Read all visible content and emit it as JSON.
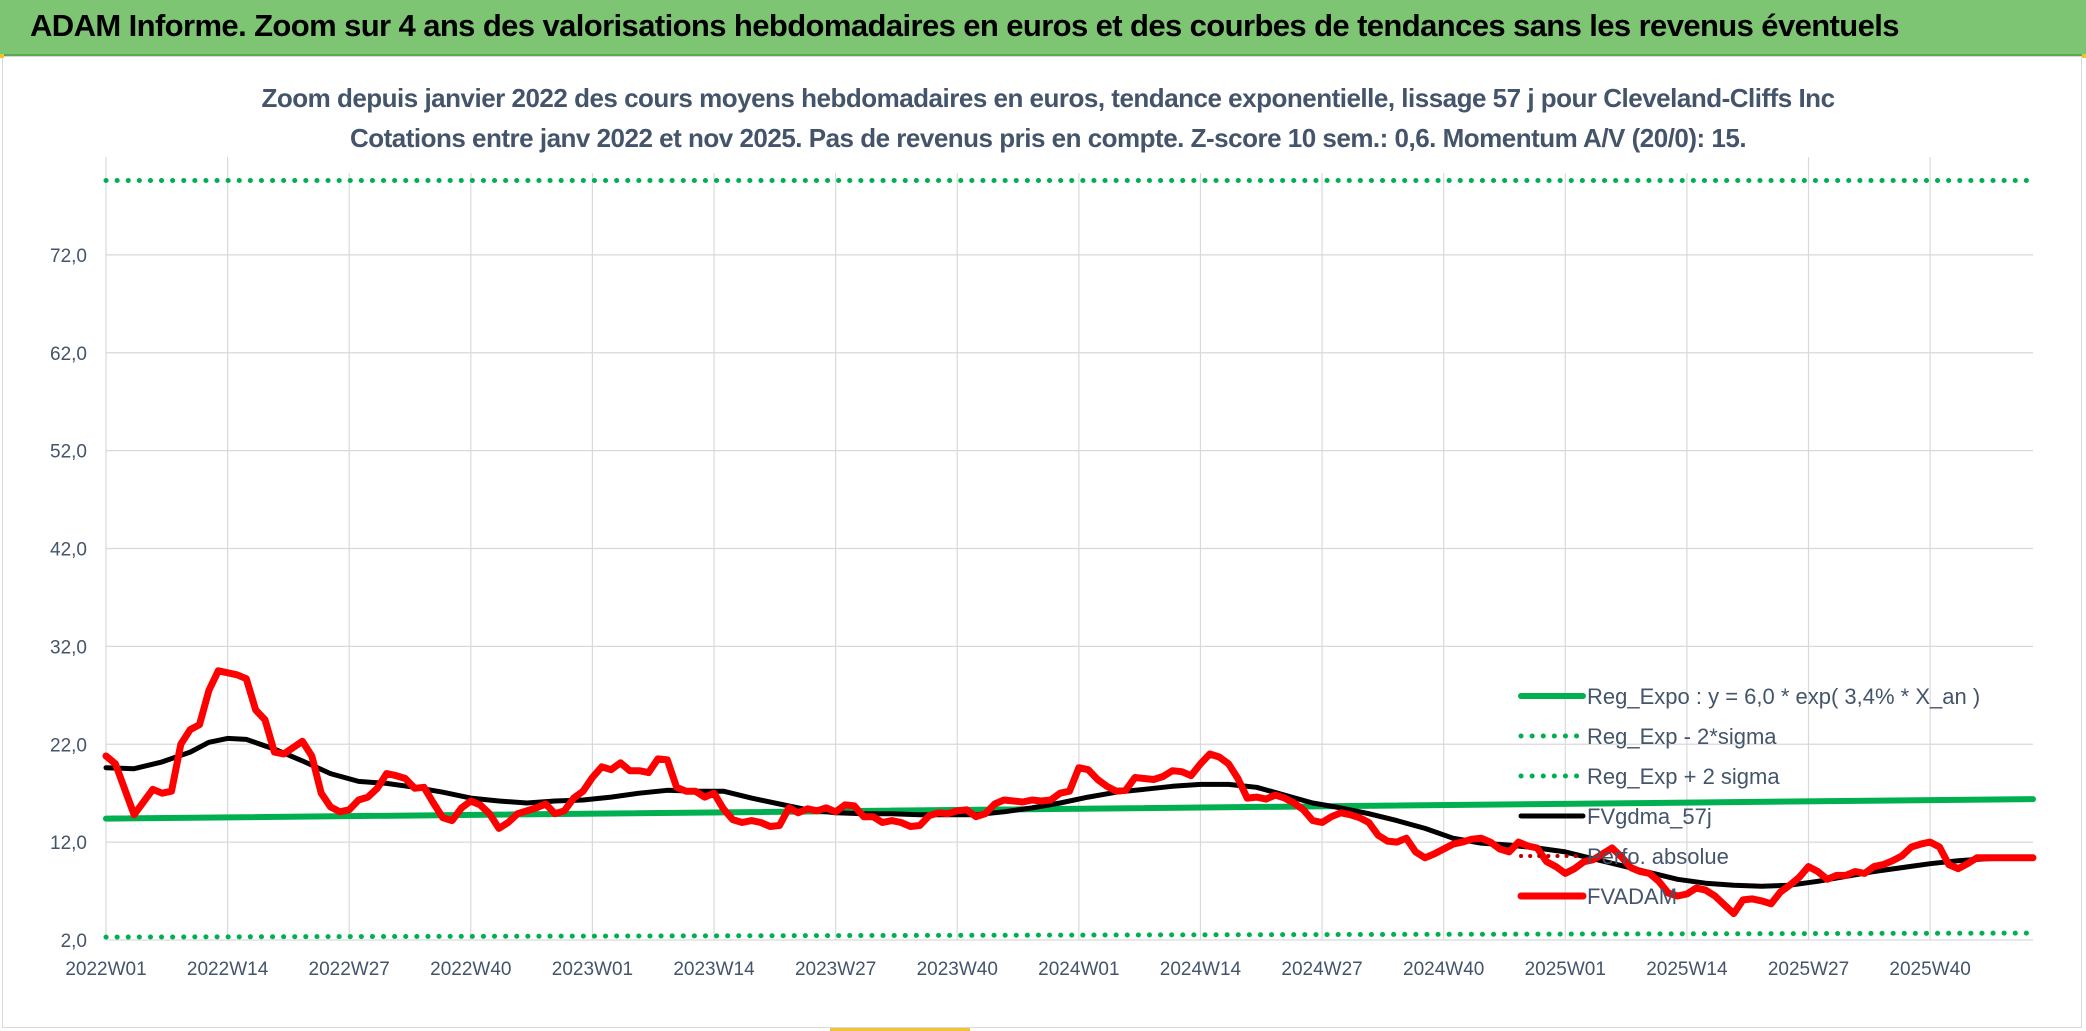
{
  "header": {
    "title": "ADAM Informe. Zoom sur 4 ans des valorisations hebdomadaires en euros et des courbes de tendances sans les revenus éventuels"
  },
  "colors": {
    "header_bg": "#7dc473",
    "reg_expo": "#00b050",
    "fvgdma": "#000000",
    "perf": "#c00000",
    "fvadam": "#ff0000",
    "grid": "#d9d9d9",
    "text": "#44546a"
  },
  "chart_data": {
    "type": "line",
    "title": "Zoom depuis janvier 2022 des cours moyens hebdomadaires en euros, tendance exponentielle, lissage 57 j pour Cleveland-Cliffs Inc",
    "subtitle": "Cotations entre janv 2022 et nov 2025. Pas de revenus pris en compte. Z-score 10 sem.: 0,6. Momentum A/V (20/0): 15.",
    "xlabel": "",
    "ylabel": "",
    "ylim": [
      2,
      82
    ],
    "yticks": [
      "2,0",
      "12,0",
      "22,0",
      "32,0",
      "42,0",
      "52,0",
      "62,0",
      "72,0"
    ],
    "xticks": [
      "2022W01",
      "2022W14",
      "2022W27",
      "2022W40",
      "2023W01",
      "2023W14",
      "2023W27",
      "2023W40",
      "2024W01",
      "2024W14",
      "2024W27",
      "2024W40",
      "2025W01",
      "2025W14",
      "2025W27",
      "2025W40"
    ],
    "grid": true,
    "legend_position": "right",
    "series": [
      {
        "name": "Reg_Expo : y = 6,0 * exp( 3,4% *  X_an )",
        "style": "solid",
        "points": [
          [
            0,
            14.4
          ],
          [
            206,
            16.4
          ]
        ]
      },
      {
        "name": "Reg_Exp - 2*sigma",
        "style": "dotted",
        "points": [
          [
            0,
            2.3
          ],
          [
            206,
            2.7
          ]
        ]
      },
      {
        "name": "Reg_Exp + 2 sigma",
        "style": "dotted",
        "points": [
          [
            0,
            79.6
          ],
          [
            206,
            79.6
          ]
        ]
      },
      {
        "name": "FVgdma_57j",
        "style": "solid",
        "points": [
          [
            0,
            19.6
          ],
          [
            3,
            19.5
          ],
          [
            6,
            20.2
          ],
          [
            9,
            21.2
          ],
          [
            11,
            22.2
          ],
          [
            13,
            22.6
          ],
          [
            15,
            22.5
          ],
          [
            18,
            21.5
          ],
          [
            21,
            20.3
          ],
          [
            24,
            19.0
          ],
          [
            27,
            18.2
          ],
          [
            30,
            18.0
          ],
          [
            33,
            17.6
          ],
          [
            36,
            17.1
          ],
          [
            39,
            16.5
          ],
          [
            42,
            16.2
          ],
          [
            45,
            16.0
          ],
          [
            48,
            16.2
          ],
          [
            51,
            16.3
          ],
          [
            54,
            16.6
          ],
          [
            57,
            17.0
          ],
          [
            60,
            17.3
          ],
          [
            63,
            17.2
          ],
          [
            66,
            17.2
          ],
          [
            69,
            16.5
          ],
          [
            72,
            15.9
          ],
          [
            75,
            15.3
          ],
          [
            78,
            15.0
          ],
          [
            81,
            14.9
          ],
          [
            84,
            14.9
          ],
          [
            87,
            14.8
          ],
          [
            90,
            14.8
          ],
          [
            93,
            14.8
          ],
          [
            96,
            15.1
          ],
          [
            99,
            15.5
          ],
          [
            102,
            16.0
          ],
          [
            105,
            16.6
          ],
          [
            108,
            17.1
          ],
          [
            111,
            17.4
          ],
          [
            114,
            17.7
          ],
          [
            117,
            17.9
          ],
          [
            120,
            17.9
          ],
          [
            123,
            17.6
          ],
          [
            126,
            16.8
          ],
          [
            129,
            16.0
          ],
          [
            132,
            15.5
          ],
          [
            135,
            14.9
          ],
          [
            138,
            14.2
          ],
          [
            141,
            13.4
          ],
          [
            144,
            12.4
          ],
          [
            147,
            11.9
          ],
          [
            150,
            11.7
          ],
          [
            153,
            11.4
          ],
          [
            156,
            11.0
          ],
          [
            159,
            10.3
          ],
          [
            162,
            9.6
          ],
          [
            165,
            8.9
          ],
          [
            168,
            8.2
          ],
          [
            171,
            7.8
          ],
          [
            174,
            7.6
          ],
          [
            177,
            7.5
          ],
          [
            180,
            7.6
          ],
          [
            183,
            8.0
          ],
          [
            186,
            8.5
          ],
          [
            189,
            9.0
          ],
          [
            192,
            9.4
          ],
          [
            195,
            9.8
          ],
          [
            198,
            10.1
          ],
          [
            201,
            10.3
          ],
          [
            204,
            10.4
          ],
          [
            206,
            10.4
          ]
        ]
      },
      {
        "name": "Perfo. absolue",
        "style": "dotted",
        "points": []
      },
      {
        "name": "FVADAM",
        "style": "solid",
        "points": [
          [
            0,
            20.8
          ],
          [
            1,
            20.0
          ],
          [
            3,
            14.8
          ],
          [
            5,
            17.4
          ],
          [
            6,
            17.0
          ],
          [
            7,
            17.2
          ],
          [
            8,
            22.0
          ],
          [
            9,
            23.5
          ],
          [
            10,
            24.0
          ],
          [
            11,
            27.5
          ],
          [
            12,
            29.5
          ],
          [
            14,
            29.1
          ],
          [
            15,
            28.7
          ],
          [
            16,
            25.5
          ],
          [
            17,
            24.5
          ],
          [
            18,
            21.2
          ],
          [
            19,
            21.0
          ],
          [
            21,
            22.3
          ],
          [
            22,
            20.8
          ],
          [
            23,
            17.0
          ],
          [
            24,
            15.6
          ],
          [
            25,
            15.1
          ],
          [
            26,
            15.3
          ],
          [
            27,
            16.3
          ],
          [
            28,
            16.6
          ],
          [
            29,
            17.5
          ],
          [
            30,
            19.0
          ],
          [
            31,
            18.8
          ],
          [
            32,
            18.5
          ],
          [
            33,
            17.5
          ],
          [
            34,
            17.6
          ],
          [
            35,
            16.0
          ],
          [
            36,
            14.5
          ],
          [
            37,
            14.2
          ],
          [
            38,
            15.5
          ],
          [
            39,
            16.2
          ],
          [
            40,
            15.8
          ],
          [
            41,
            14.9
          ],
          [
            42,
            13.4
          ],
          [
            43,
            14.0
          ],
          [
            44,
            14.9
          ],
          [
            45,
            15.2
          ],
          [
            46,
            15.5
          ],
          [
            47,
            15.9
          ],
          [
            48,
            14.9
          ],
          [
            49,
            15.2
          ],
          [
            50,
            16.5
          ],
          [
            51,
            17.2
          ],
          [
            52,
            18.6
          ],
          [
            53,
            19.7
          ],
          [
            54,
            19.4
          ],
          [
            55,
            20.1
          ],
          [
            56,
            19.3
          ],
          [
            57,
            19.3
          ],
          [
            58,
            19.1
          ],
          [
            59,
            20.5
          ],
          [
            60,
            20.4
          ],
          [
            61,
            17.6
          ],
          [
            62,
            17.2
          ],
          [
            63,
            17.2
          ],
          [
            64,
            16.6
          ],
          [
            65,
            17.0
          ],
          [
            66,
            15.4
          ],
          [
            67,
            14.3
          ],
          [
            68,
            14.0
          ],
          [
            69,
            14.2
          ],
          [
            70,
            14.0
          ],
          [
            71,
            13.6
          ],
          [
            72,
            13.7
          ],
          [
            73,
            15.5
          ],
          [
            74,
            15.0
          ],
          [
            75,
            15.4
          ],
          [
            76,
            15.2
          ],
          [
            77,
            15.5
          ],
          [
            78,
            15.1
          ],
          [
            79,
            15.8
          ],
          [
            80,
            15.7
          ],
          [
            81,
            14.6
          ],
          [
            82,
            14.6
          ],
          [
            83,
            14.0
          ],
          [
            84,
            14.2
          ],
          [
            85,
            14.0
          ],
          [
            86,
            13.6
          ],
          [
            87,
            13.7
          ],
          [
            88,
            14.7
          ],
          [
            89,
            15.0
          ],
          [
            90,
            14.9
          ],
          [
            91,
            15.2
          ],
          [
            92,
            15.3
          ],
          [
            93,
            14.6
          ],
          [
            94,
            14.9
          ],
          [
            95,
            15.9
          ],
          [
            96,
            16.3
          ],
          [
            97,
            16.2
          ],
          [
            98,
            16.1
          ],
          [
            99,
            16.3
          ],
          [
            100,
            16.2
          ],
          [
            101,
            16.3
          ],
          [
            102,
            17.0
          ],
          [
            103,
            17.2
          ],
          [
            104,
            19.6
          ],
          [
            105,
            19.4
          ],
          [
            106,
            18.4
          ],
          [
            107,
            17.7
          ],
          [
            108,
            17.2
          ],
          [
            109,
            17.3
          ],
          [
            110,
            18.6
          ],
          [
            111,
            18.5
          ],
          [
            112,
            18.4
          ],
          [
            113,
            18.7
          ],
          [
            114,
            19.3
          ],
          [
            115,
            19.2
          ],
          [
            116,
            18.8
          ],
          [
            117,
            20.0
          ],
          [
            118,
            21.0
          ],
          [
            119,
            20.7
          ],
          [
            120,
            20.0
          ],
          [
            121,
            18.5
          ],
          [
            122,
            16.5
          ],
          [
            123,
            16.6
          ],
          [
            124,
            16.4
          ],
          [
            125,
            16.8
          ],
          [
            126,
            16.5
          ],
          [
            127,
            16.0
          ],
          [
            128,
            15.3
          ],
          [
            129,
            14.2
          ],
          [
            130,
            14.0
          ],
          [
            131,
            14.6
          ],
          [
            132,
            15.0
          ],
          [
            133,
            14.8
          ],
          [
            134,
            14.5
          ],
          [
            135,
            14.0
          ],
          [
            136,
            12.7
          ],
          [
            137,
            12.1
          ],
          [
            138,
            12.0
          ],
          [
            139,
            12.4
          ],
          [
            140,
            11.0
          ],
          [
            141,
            10.4
          ],
          [
            142,
            10.8
          ],
          [
            143,
            11.3
          ],
          [
            144,
            11.8
          ],
          [
            145,
            12.0
          ],
          [
            146,
            12.3
          ],
          [
            147,
            12.4
          ],
          [
            148,
            12.0
          ],
          [
            149,
            11.3
          ],
          [
            150,
            11.0
          ],
          [
            151,
            12.0
          ],
          [
            152,
            11.6
          ],
          [
            153,
            11.4
          ],
          [
            154,
            10.0
          ],
          [
            155,
            9.5
          ],
          [
            156,
            8.8
          ],
          [
            157,
            9.3
          ],
          [
            158,
            10.0
          ],
          [
            159,
            10.2
          ],
          [
            160,
            10.8
          ],
          [
            161,
            11.4
          ],
          [
            162,
            10.5
          ],
          [
            163,
            9.4
          ],
          [
            164,
            9.0
          ],
          [
            165,
            8.8
          ],
          [
            166,
            8.0
          ],
          [
            167,
            6.8
          ],
          [
            168,
            6.5
          ],
          [
            169,
            6.7
          ],
          [
            170,
            7.3
          ],
          [
            171,
            7.1
          ],
          [
            172,
            6.5
          ],
          [
            173,
            5.6
          ],
          [
            174,
            4.7
          ],
          [
            175,
            6.1
          ],
          [
            176,
            6.2
          ],
          [
            177,
            6.0
          ],
          [
            178,
            5.7
          ],
          [
            179,
            6.9
          ],
          [
            180,
            7.6
          ],
          [
            181,
            8.4
          ],
          [
            182,
            9.5
          ],
          [
            183,
            9.0
          ],
          [
            184,
            8.2
          ],
          [
            185,
            8.6
          ],
          [
            186,
            8.6
          ],
          [
            187,
            9.0
          ],
          [
            188,
            8.8
          ],
          [
            189,
            9.5
          ],
          [
            190,
            9.7
          ],
          [
            191,
            10.1
          ],
          [
            192,
            10.6
          ],
          [
            193,
            11.5
          ],
          [
            194,
            11.8
          ],
          [
            195,
            12.0
          ],
          [
            196,
            11.5
          ],
          [
            197,
            9.7
          ],
          [
            198,
            9.3
          ],
          [
            199,
            9.8
          ],
          [
            200,
            10.4
          ],
          [
            206,
            10.4
          ]
        ]
      }
    ]
  }
}
